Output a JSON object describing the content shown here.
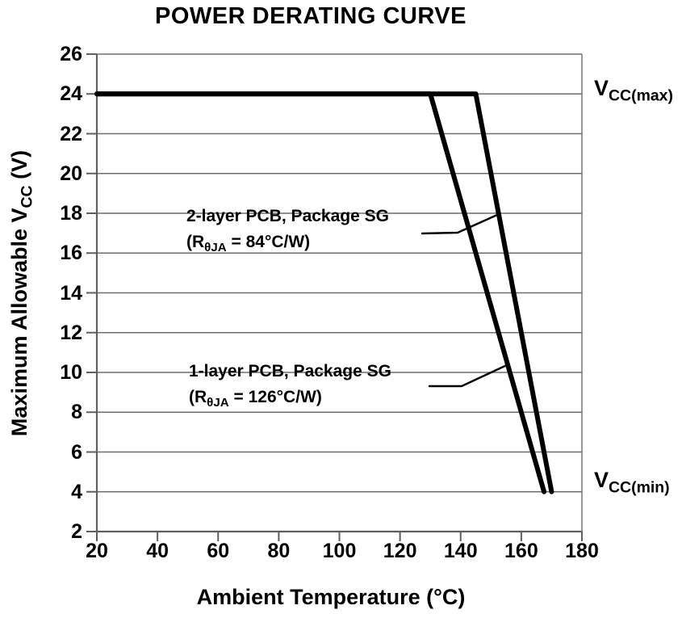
{
  "chart_data": {
    "type": "line",
    "title": "POWER DERATING CURVE",
    "xlabel": "Ambient Temperature (°C)",
    "ylabel": {
      "pre": "Maximum Allowable V",
      "sub": "CC",
      "post": " (V)"
    },
    "xlim": [
      20,
      180
    ],
    "ylim": [
      2,
      26
    ],
    "x_ticks": [
      20,
      40,
      60,
      80,
      100,
      120,
      140,
      160,
      180
    ],
    "y_ticks": [
      2,
      4,
      6,
      8,
      10,
      12,
      14,
      16,
      18,
      20,
      22,
      24,
      26
    ],
    "grid": "horizontal-only",
    "legend_position": "none (inline callout annotations)",
    "series": [
      {
        "name": "2-layer PCB, Package SG (RθJA = 84°C/W)",
        "points": [
          [
            20,
            24
          ],
          [
            145,
            24
          ],
          [
            170,
            4
          ]
        ]
      },
      {
        "name": "1-layer PCB, Package SG (RθJA = 126°C/W)",
        "points": [
          [
            20,
            24
          ],
          [
            130,
            24
          ],
          [
            167.5,
            4
          ]
        ]
      }
    ],
    "annotations": [
      {
        "line1": "2-layer PCB, Package SG",
        "line2_pre": "(R",
        "line2_sub": "θJA",
        "line2_post": " = 84°C/W)"
      },
      {
        "line1": "1-layer PCB, Package SG",
        "line2_pre": "(R",
        "line2_sub": "θJA",
        "line2_post": " = 126°C/W)"
      }
    ],
    "right_labels": {
      "max": {
        "pre": "V",
        "sub": "CC(max)"
      },
      "min": {
        "pre": "V",
        "sub": "CC(min)"
      }
    }
  },
  "colors": {
    "curve": "#000000",
    "grid": "#6e6e6e",
    "axis": "#5f5f5f",
    "text": "#000000",
    "background": "#ffffff"
  }
}
